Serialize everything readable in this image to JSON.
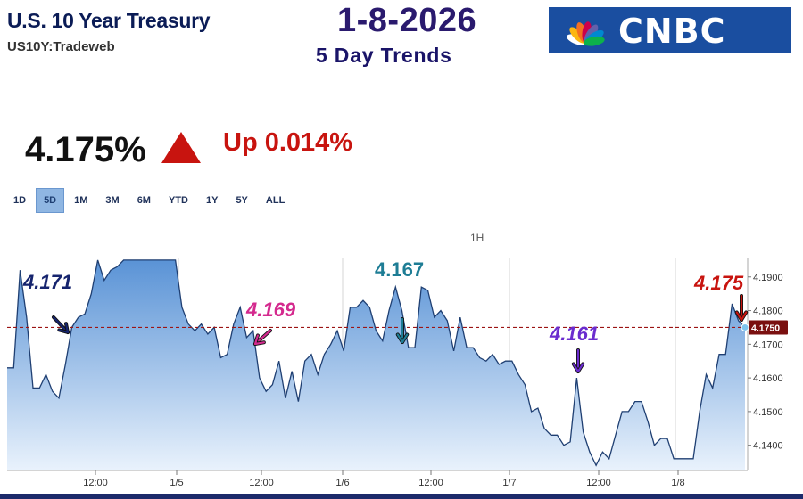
{
  "header": {
    "title": "U.S. 10 Year Treasury",
    "subtitle": "US10Y:Tradeweb",
    "date": "1-8-2026",
    "trend_label": "5 Day Trends",
    "logo_text": "CNBC"
  },
  "quote": {
    "price": "4.175%",
    "change": "Up 0.014%",
    "direction_icon": "triangle-up-icon",
    "up_color": "#c8140f"
  },
  "tabs": [
    {
      "label": "1D",
      "active": false
    },
    {
      "label": "5D",
      "active": true
    },
    {
      "label": "1M",
      "active": false
    },
    {
      "label": "3M",
      "active": false
    },
    {
      "label": "6M",
      "active": false
    },
    {
      "label": "YTD",
      "active": false
    },
    {
      "label": "1Y",
      "active": false
    },
    {
      "label": "5Y",
      "active": false
    },
    {
      "label": "ALL",
      "active": false
    }
  ],
  "chart_data": {
    "type": "area",
    "interval": "1H",
    "x_ticks": [
      "12:00",
      "1/5",
      "12:00",
      "1/6",
      "12:00",
      "1/7",
      "12:00",
      "1/8"
    ],
    "y_ticks": [
      "4.1900",
      "4.1800",
      "4.1700",
      "4.1600",
      "4.1500",
      "4.1400"
    ],
    "ylim": [
      4.1325,
      4.1955
    ],
    "current_value_label": "4.1750",
    "reference_value": 4.175,
    "series": [
      {
        "values": [
          4.163,
          4.163,
          4.192,
          4.178,
          4.157,
          4.157,
          4.161,
          4.156,
          4.154,
          4.164,
          4.175,
          4.178,
          4.179,
          4.185,
          4.195,
          4.189,
          4.192,
          4.193,
          4.195,
          4.195,
          4.195,
          4.195,
          4.195,
          4.195,
          4.195,
          4.195,
          4.195,
          4.181,
          4.176,
          4.174,
          4.176,
          4.173,
          4.175,
          4.166,
          4.167,
          4.176,
          4.181,
          4.172,
          4.174,
          4.16,
          4.156,
          4.158,
          4.165,
          4.154,
          4.162,
          4.153,
          4.165,
          4.167,
          4.161,
          4.167,
          4.17,
          4.174,
          4.168,
          4.181,
          4.181,
          4.183,
          4.181,
          4.174,
          4.171,
          4.18,
          4.187,
          4.18,
          4.169,
          4.169,
          4.187,
          4.186,
          4.178,
          4.18,
          4.177,
          4.168,
          4.178,
          4.169,
          4.169,
          4.166,
          4.165,
          4.167,
          4.164,
          4.165,
          4.165,
          4.161,
          4.158,
          4.15,
          4.151,
          4.145,
          4.143,
          4.143,
          4.14,
          4.141,
          4.16,
          4.144,
          4.138,
          4.134,
          4.138,
          4.136,
          4.143,
          4.15,
          4.15,
          4.153,
          4.153,
          4.147,
          4.14,
          4.142,
          4.142,
          4.136,
          4.136,
          4.136,
          4.136,
          4.15,
          4.161,
          4.157,
          4.167,
          4.167,
          4.182,
          4.177,
          4.175
        ]
      }
    ],
    "annotations": [
      {
        "text": "4.171",
        "color": "#16246e"
      },
      {
        "text": "4.169",
        "color": "#d42a8e"
      },
      {
        "text": "4.167",
        "color": "#1e7d95"
      },
      {
        "text": "4.161",
        "color": "#6b2ccf"
      },
      {
        "text": "4.175",
        "color": "#c8140f"
      }
    ],
    "colors": {
      "line": "#1f3f72",
      "fill_top": "#5a93d6",
      "fill_bottom": "#e9f2fc",
      "reference_line": "#9c1414",
      "value_box": "#7a0f0f"
    }
  }
}
